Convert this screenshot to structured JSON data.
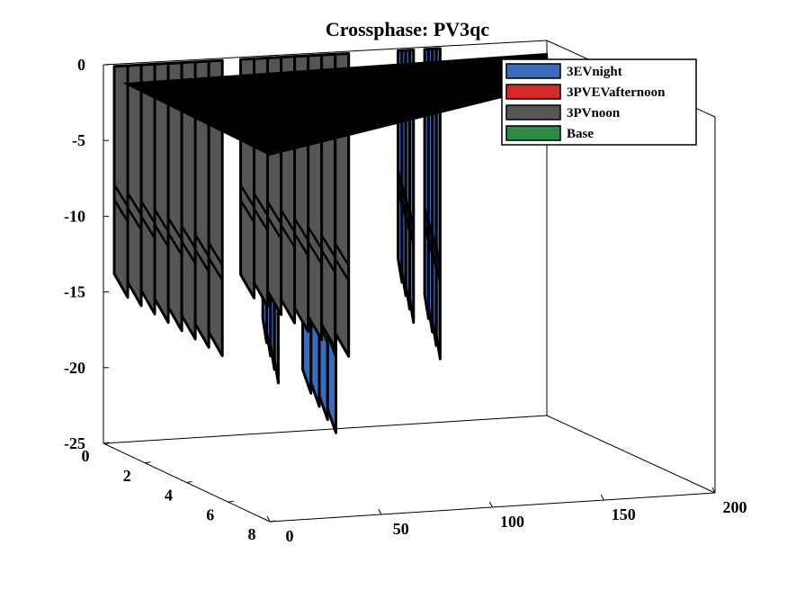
{
  "chart_data": {
    "type": "3d-waterfall",
    "title": "Crossphase: PV3qc",
    "xlim": [
      0,
      200
    ],
    "ylim": [
      0,
      8
    ],
    "zlim": [
      -25,
      0
    ],
    "x_ticks": [
      "0",
      "50",
      "100",
      "150",
      "200"
    ],
    "y_ticks": [
      "0",
      "2",
      "4",
      "6",
      "8"
    ],
    "z_ticks": [
      "0",
      "-5",
      "-10",
      "-15",
      "-20",
      "-25"
    ],
    "legend_position": "top-right",
    "series": [
      {
        "name": "3EVnight",
        "color": "#3a6bbd",
        "walls": [
          {
            "x": 70,
            "y": 0.2,
            "bottom": -21.5
          },
          {
            "x": 79,
            "y": 0.2,
            "bottom": -16.5
          },
          {
            "x": 88,
            "y": 0.2,
            "bottom": -25
          },
          {
            "x": 131,
            "y": 0.2,
            "bottom": -18
          },
          {
            "x": 143,
            "y": 0.2,
            "bottom": -20.5
          }
        ]
      },
      {
        "name": "3PVEVafternoon",
        "color": "#d62a2a",
        "walls": []
      },
      {
        "name": "3PVnoon",
        "color": "#555555",
        "walls": [
          {
            "x": 3,
            "y": 0.2,
            "bottom": -19.5
          },
          {
            "x": 60,
            "y": 0.2,
            "bottom": -20
          }
        ]
      },
      {
        "name": "Base",
        "color": "#2e8b45",
        "walls": []
      }
    ]
  }
}
